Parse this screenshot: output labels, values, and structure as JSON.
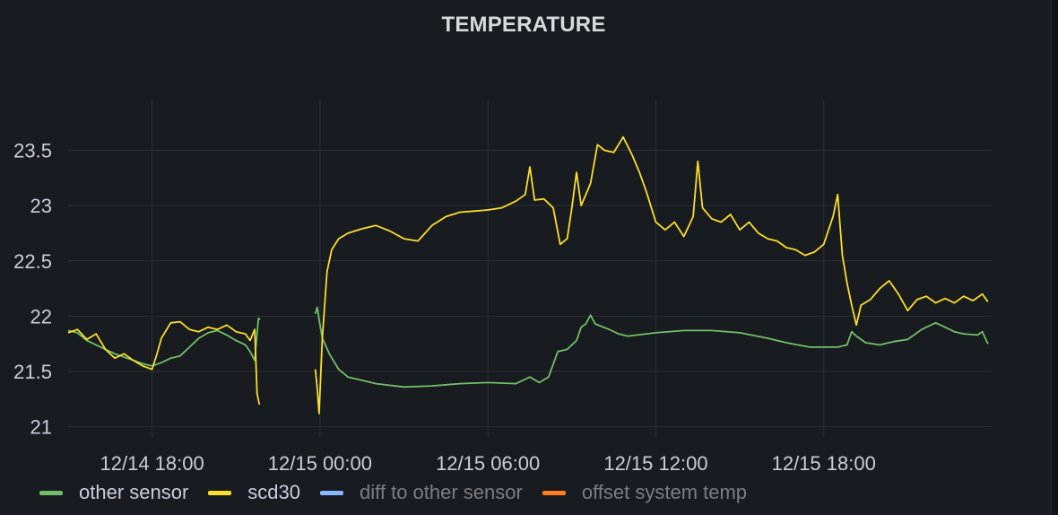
{
  "panel": {
    "title": "TEMPERATURE"
  },
  "chart_data": {
    "type": "line",
    "title": "TEMPERATURE",
    "xlabel": "",
    "ylabel": "",
    "x_range": [
      "12/14 15:00",
      "12/16 00:00"
    ],
    "ylim": [
      20.9,
      23.95
    ],
    "y_ticks": [
      21,
      21.5,
      22,
      22.5,
      23,
      23.5
    ],
    "y_tick_labels": [
      "21",
      "21.5",
      "22",
      "22.5",
      "23",
      "23.5"
    ],
    "x_ticks": [
      "12/14 18:00",
      "12/15 00:00",
      "12/15 06:00",
      "12/15 12:00",
      "12/15 18:00"
    ],
    "grid": true,
    "legend_position": "bottom-left",
    "series": [
      {
        "name": "other sensor",
        "color": "#73bf69",
        "visible": true,
        "segments": [
          [
            [
              "12/14 15:00",
              21.87
            ],
            [
              "12/14 15:20",
              21.85
            ],
            [
              "12/14 15:40",
              21.78
            ],
            [
              "12/14 16:00",
              21.74
            ],
            [
              "12/14 16:20",
              21.7
            ],
            [
              "12/14 16:40",
              21.66
            ],
            [
              "12/14 17:00",
              21.63
            ],
            [
              "12/14 17:20",
              21.6
            ],
            [
              "12/14 17:40",
              21.57
            ],
            [
              "12/14 18:00",
              21.55
            ],
            [
              "12/14 18:20",
              21.58
            ],
            [
              "12/14 18:40",
              21.62
            ],
            [
              "12/14 19:00",
              21.64
            ],
            [
              "12/14 19:20",
              21.72
            ],
            [
              "12/14 19:40",
              21.8
            ],
            [
              "12/14 20:00",
              21.85
            ],
            [
              "12/14 20:20",
              21.87
            ],
            [
              "12/14 20:40",
              21.83
            ],
            [
              "12/14 21:00",
              21.78
            ],
            [
              "12/14 21:20",
              21.74
            ],
            [
              "12/14 21:30",
              21.68
            ],
            [
              "12/14 21:40",
              21.6
            ],
            [
              "12/14 21:48",
              21.98
            ],
            [
              "12/14 21:52",
              21.97
            ]
          ],
          [
            [
              "12/14 23:50",
              22.02
            ],
            [
              "12/14 23:54",
              22.08
            ],
            [
              "12/14 23:58",
              21.97
            ],
            [
              "12/15 00:05",
              21.8
            ],
            [
              "12/15 00:20",
              21.66
            ],
            [
              "12/15 00:40",
              21.52
            ],
            [
              "12/15 01:00",
              21.45
            ],
            [
              "12/15 01:30",
              21.42
            ],
            [
              "12/15 02:00",
              21.39
            ],
            [
              "12/15 03:00",
              21.36
            ],
            [
              "12/15 04:00",
              21.37
            ],
            [
              "12/15 05:00",
              21.39
            ],
            [
              "12/15 06:00",
              21.4
            ],
            [
              "12/15 07:00",
              21.39
            ],
            [
              "12/15 07:30",
              21.45
            ],
            [
              "12/15 07:50",
              21.4
            ],
            [
              "12/15 08:10",
              21.45
            ],
            [
              "12/15 08:30",
              21.68
            ],
            [
              "12/15 08:50",
              21.7
            ],
            [
              "12/15 09:10",
              21.78
            ],
            [
              "12/15 09:20",
              21.9
            ],
            [
              "12/15 09:30",
              21.93
            ],
            [
              "12/15 09:40",
              22.01
            ],
            [
              "12/15 09:50",
              21.93
            ],
            [
              "12/15 10:20",
              21.88
            ],
            [
              "12/15 10:40",
              21.84
            ],
            [
              "12/15 11:00",
              21.82
            ],
            [
              "12/15 12:00",
              21.85
            ],
            [
              "12/15 13:00",
              21.87
            ],
            [
              "12/15 14:00",
              21.87
            ],
            [
              "12/15 15:00",
              21.85
            ],
            [
              "12/15 16:00",
              21.8
            ],
            [
              "12/15 16:40",
              21.76
            ],
            [
              "12/15 17:30",
              21.72
            ],
            [
              "12/15 18:30",
              21.72
            ],
            [
              "12/15 18:50",
              21.74
            ],
            [
              "12/15 19:00",
              21.86
            ],
            [
              "12/15 19:10",
              21.82
            ],
            [
              "12/15 19:30",
              21.76
            ],
            [
              "12/15 20:00",
              21.74
            ],
            [
              "12/15 20:30",
              21.77
            ],
            [
              "12/15 21:00",
              21.79
            ],
            [
              "12/15 21:30",
              21.88
            ],
            [
              "12/15 22:00",
              21.94
            ],
            [
              "12/15 22:20",
              21.9
            ],
            [
              "12/15 22:40",
              21.86
            ],
            [
              "12/15 23:00",
              21.84
            ],
            [
              "12/15 23:30",
              21.83
            ],
            [
              "12/15 23:40",
              21.86
            ],
            [
              "12/15 23:52",
              21.75
            ]
          ]
        ]
      },
      {
        "name": "scd30",
        "color": "#fade2a",
        "visible": true,
        "segments": [
          [
            [
              "12/14 15:00",
              21.85
            ],
            [
              "12/14 15:20",
              21.88
            ],
            [
              "12/14 15:40",
              21.79
            ],
            [
              "12/14 16:00",
              21.84
            ],
            [
              "12/14 16:20",
              21.7
            ],
            [
              "12/14 16:40",
              21.62
            ],
            [
              "12/14 17:00",
              21.66
            ],
            [
              "12/14 17:20",
              21.6
            ],
            [
              "12/14 17:40",
              21.55
            ],
            [
              "12/14 18:00",
              21.52
            ],
            [
              "12/14 18:10",
              21.65
            ],
            [
              "12/14 18:20",
              21.8
            ],
            [
              "12/14 18:40",
              21.94
            ],
            [
              "12/14 19:00",
              21.95
            ],
            [
              "12/14 19:20",
              21.88
            ],
            [
              "12/14 19:40",
              21.86
            ],
            [
              "12/14 20:00",
              21.9
            ],
            [
              "12/14 20:20",
              21.88
            ],
            [
              "12/14 20:40",
              21.92
            ],
            [
              "12/14 21:00",
              21.86
            ],
            [
              "12/14 21:20",
              21.84
            ],
            [
              "12/14 21:30",
              21.78
            ],
            [
              "12/14 21:40",
              21.88
            ],
            [
              "12/14 21:45",
              21.3
            ],
            [
              "12/14 21:50",
              21.2
            ]
          ],
          [
            [
              "12/14 23:50",
              21.52
            ],
            [
              "12/14 23:54",
              21.35
            ],
            [
              "12/14 23:58",
              21.12
            ],
            [
              "12/15 00:05",
              21.8
            ],
            [
              "12/15 00:15",
              22.4
            ],
            [
              "12/15 00:25",
              22.6
            ],
            [
              "12/15 00:40",
              22.7
            ],
            [
              "12/15 01:00",
              22.75
            ],
            [
              "12/15 01:30",
              22.79
            ],
            [
              "12/15 02:00",
              22.82
            ],
            [
              "12/15 02:30",
              22.77
            ],
            [
              "12/15 03:00",
              22.7
            ],
            [
              "12/15 03:30",
              22.68
            ],
            [
              "12/15 04:00",
              22.82
            ],
            [
              "12/15 04:30",
              22.9
            ],
            [
              "12/15 05:00",
              22.94
            ],
            [
              "12/15 05:30",
              22.95
            ],
            [
              "12/15 06:00",
              22.96
            ],
            [
              "12/15 06:30",
              22.98
            ],
            [
              "12/15 07:00",
              23.04
            ],
            [
              "12/15 07:20",
              23.1
            ],
            [
              "12/15 07:30",
              23.35
            ],
            [
              "12/15 07:40",
              23.05
            ],
            [
              "12/15 08:00",
              23.06
            ],
            [
              "12/15 08:20",
              22.98
            ],
            [
              "12/15 08:35",
              22.65
            ],
            [
              "12/15 08:50",
              22.7
            ],
            [
              "12/15 09:00",
              22.98
            ],
            [
              "12/15 09:10",
              23.3
            ],
            [
              "12/15 09:20",
              23.0
            ],
            [
              "12/15 09:40",
              23.2
            ],
            [
              "12/15 09:55",
              23.55
            ],
            [
              "12/15 10:10",
              23.5
            ],
            [
              "12/15 10:30",
              23.48
            ],
            [
              "12/15 10:50",
              23.62
            ],
            [
              "12/15 11:10",
              23.45
            ],
            [
              "12/15 11:25",
              23.3
            ],
            [
              "12/15 11:40",
              23.12
            ],
            [
              "12/15 12:00",
              22.85
            ],
            [
              "12/15 12:20",
              22.78
            ],
            [
              "12/15 12:40",
              22.85
            ],
            [
              "12/15 13:00",
              22.72
            ],
            [
              "12/15 13:20",
              22.9
            ],
            [
              "12/15 13:30",
              23.4
            ],
            [
              "12/15 13:40",
              22.98
            ],
            [
              "12/15 14:00",
              22.88
            ],
            [
              "12/15 14:20",
              22.85
            ],
            [
              "12/15 14:40",
              22.92
            ],
            [
              "12/15 15:00",
              22.78
            ],
            [
              "12/15 15:20",
              22.85
            ],
            [
              "12/15 15:40",
              22.75
            ],
            [
              "12/15 16:00",
              22.7
            ],
            [
              "12/15 16:20",
              22.68
            ],
            [
              "12/15 16:40",
              22.62
            ],
            [
              "12/15 17:00",
              22.6
            ],
            [
              "12/15 17:20",
              22.55
            ],
            [
              "12/15 17:40",
              22.58
            ],
            [
              "12/15 18:00",
              22.65
            ],
            [
              "12/15 18:20",
              22.9
            ],
            [
              "12/15 18:30",
              23.1
            ],
            [
              "12/15 18:40",
              22.55
            ],
            [
              "12/15 18:50",
              22.3
            ],
            [
              "12/15 19:00",
              22.1
            ],
            [
              "12/15 19:10",
              21.92
            ],
            [
              "12/15 19:20",
              22.1
            ],
            [
              "12/15 19:40",
              22.15
            ],
            [
              "12/15 20:00",
              22.25
            ],
            [
              "12/15 20:20",
              22.32
            ],
            [
              "12/15 20:40",
              22.2
            ],
            [
              "12/15 21:00",
              22.05
            ],
            [
              "12/15 21:20",
              22.15
            ],
            [
              "12/15 21:40",
              22.18
            ],
            [
              "12/15 22:00",
              22.12
            ],
            [
              "12/15 22:20",
              22.16
            ],
            [
              "12/15 22:40",
              22.12
            ],
            [
              "12/15 23:00",
              22.18
            ],
            [
              "12/15 23:20",
              22.14
            ],
            [
              "12/15 23:40",
              22.2
            ],
            [
              "12/15 23:52",
              22.13
            ]
          ]
        ]
      },
      {
        "name": "diff to other sensor",
        "color": "#8ab8ff",
        "visible": false,
        "segments": []
      },
      {
        "name": "offset system temp",
        "color": "#ff7f1e",
        "visible": false,
        "segments": []
      }
    ]
  }
}
